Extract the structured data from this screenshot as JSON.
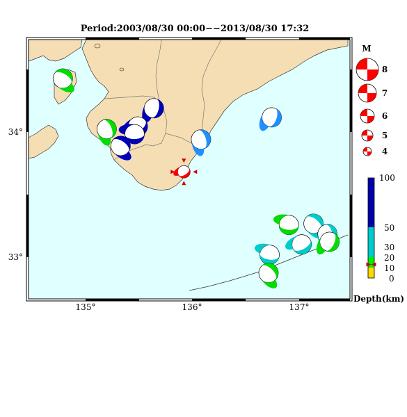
{
  "title": "Period:2003/08/30 00:00−−2013/08/30 17:32",
  "map": {
    "lon_range": [
      134.5,
      137.5
    ],
    "lat_range": [
      32.7,
      34.7
    ],
    "lon_ticks": [
      "135°",
      "136°",
      "137°"
    ],
    "lat_ticks": [
      "34°",
      "33°"
    ],
    "colors": {
      "sea": "#e0ffff",
      "land": "#f5deb3",
      "border": "#ffffff",
      "coast": "#333333"
    }
  },
  "magnitude_legend": {
    "title": "M",
    "labels": [
      "8",
      "7",
      "6",
      "5",
      "4"
    ],
    "color": "#ff0000"
  },
  "depth_scale": {
    "labels": [
      "100",
      "50",
      "30",
      "20",
      "10",
      "0"
    ],
    "title": "Depth(km)",
    "bands": [
      {
        "from": 0,
        "to": 10,
        "color": "#ffd700"
      },
      {
        "from": 10,
        "to": 20,
        "color": "#00ee00"
      },
      {
        "from": 20,
        "to": 50,
        "color": "#00cccc"
      },
      {
        "from": 50,
        "to": 100,
        "color": "#0000aa"
      }
    ],
    "marker_depth": 13
  },
  "events": [
    {
      "lon": 134.82,
      "lat": 34.4,
      "depth": 15,
      "color": "#00dd00",
      "highlight": false
    },
    {
      "lon": 135.23,
      "lat": 34.01,
      "depth": 15,
      "color": "#00dd00",
      "highlight": false
    },
    {
      "lon": 135.67,
      "lat": 34.17,
      "depth": 70,
      "color": "#0000bb",
      "highlight": false
    },
    {
      "lon": 135.52,
      "lat": 34.03,
      "depth": 70,
      "color": "#0000bb",
      "highlight": false
    },
    {
      "lon": 135.49,
      "lat": 33.97,
      "depth": 70,
      "color": "#0000bb",
      "highlight": false
    },
    {
      "lon": 135.36,
      "lat": 33.88,
      "depth": 70,
      "color": "#0000bb",
      "highlight": false
    },
    {
      "lon": 136.11,
      "lat": 33.93,
      "depth": 40,
      "color": "#1e90ff",
      "highlight": false
    },
    {
      "lon": 136.77,
      "lat": 34.1,
      "depth": 40,
      "color": "#1e90ff",
      "highlight": false
    },
    {
      "lon": 135.95,
      "lat": 33.68,
      "depth": 13,
      "color": "#ff0000",
      "highlight": true
    },
    {
      "lon": 136.93,
      "lat": 33.27,
      "depth": 15,
      "color": "#00dd00",
      "highlight": false
    },
    {
      "lon": 137.16,
      "lat": 33.28,
      "depth": 30,
      "color": "#00cccc",
      "highlight": false
    },
    {
      "lon": 137.29,
      "lat": 33.2,
      "depth": 30,
      "color": "#00cccc",
      "highlight": false
    },
    {
      "lon": 137.31,
      "lat": 33.14,
      "depth": 15,
      "color": "#00dd00",
      "highlight": false
    },
    {
      "lon": 137.05,
      "lat": 33.12,
      "depth": 30,
      "color": "#00cccc",
      "highlight": false
    },
    {
      "lon": 136.75,
      "lat": 33.04,
      "depth": 30,
      "color": "#00cccc",
      "highlight": false
    },
    {
      "lon": 136.74,
      "lat": 32.9,
      "depth": 15,
      "color": "#00dd00",
      "highlight": false
    }
  ]
}
